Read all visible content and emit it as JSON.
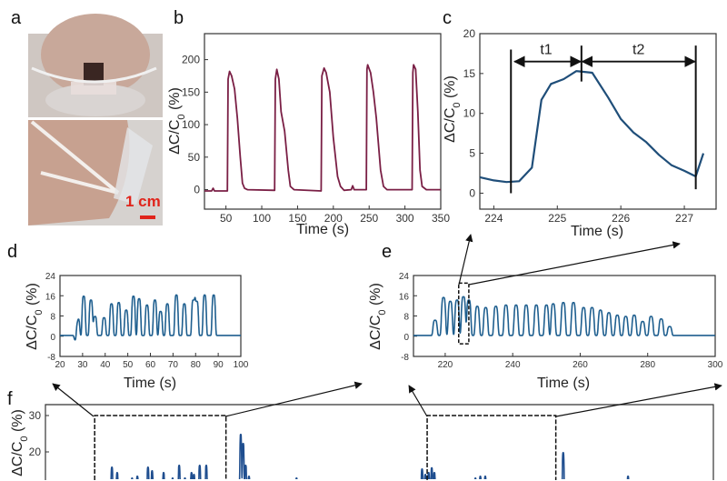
{
  "panel_a": {
    "label": "a",
    "scale_bar_label": "1 cm",
    "scale_bar_color": "#e0241b"
  },
  "chart_data": [
    {
      "id": "b",
      "panel_label": "b",
      "type": "line",
      "color": "#7a1f45",
      "xlabel": "Time (s)",
      "ylabel": [
        "ΔC/C",
        "0",
        " (%)"
      ],
      "xlim": [
        20,
        350
      ],
      "ylim": [
        -30,
        240
      ],
      "xticks": [
        50,
        100,
        150,
        200,
        250,
        300,
        350
      ],
      "yticks": [
        0,
        50,
        100,
        150,
        200
      ],
      "points": [
        [
          20,
          -2
        ],
        [
          30,
          -2
        ],
        [
          32,
          2
        ],
        [
          34,
          -2
        ],
        [
          52,
          -2
        ],
        [
          53,
          170
        ],
        [
          55,
          182
        ],
        [
          58,
          175
        ],
        [
          62,
          155
        ],
        [
          66,
          110
        ],
        [
          70,
          50
        ],
        [
          73,
          10
        ],
        [
          76,
          2
        ],
        [
          80,
          0
        ],
        [
          118,
          -1
        ],
        [
          119,
          170
        ],
        [
          121,
          185
        ],
        [
          124,
          170
        ],
        [
          127,
          120
        ],
        [
          132,
          90
        ],
        [
          137,
          30
        ],
        [
          140,
          5
        ],
        [
          145,
          0
        ],
        [
          183,
          -2
        ],
        [
          184,
          175
        ],
        [
          187,
          187
        ],
        [
          190,
          180
        ],
        [
          195,
          150
        ],
        [
          200,
          80
        ],
        [
          206,
          20
        ],
        [
          210,
          5
        ],
        [
          215,
          -1
        ],
        [
          225,
          0
        ],
        [
          227,
          6
        ],
        [
          229,
          0
        ],
        [
          246,
          0
        ],
        [
          247,
          185
        ],
        [
          248,
          192
        ],
        [
          252,
          180
        ],
        [
          256,
          150
        ],
        [
          260,
          110
        ],
        [
          266,
          30
        ],
        [
          270,
          5
        ],
        [
          275,
          0
        ],
        [
          310,
          0
        ],
        [
          311,
          180
        ],
        [
          312,
          192
        ],
        [
          315,
          185
        ],
        [
          318,
          120
        ],
        [
          321,
          30
        ],
        [
          324,
          5
        ],
        [
          330,
          0
        ],
        [
          350,
          0
        ]
      ]
    },
    {
      "id": "c",
      "panel_label": "c",
      "type": "line",
      "color": "#1f4e79",
      "xlabel": "Time (s)",
      "ylabel": [
        "ΔC/C",
        "0",
        " (%)"
      ],
      "xlim": [
        223.78,
        227.5
      ],
      "ylim": [
        -2,
        20
      ],
      "xticks": [
        224,
        225,
        226,
        227
      ],
      "yticks": [
        0,
        5,
        10,
        15,
        20
      ],
      "points": [
        [
          223.78,
          2
        ],
        [
          224,
          1.6
        ],
        [
          224.2,
          1.4
        ],
        [
          224.4,
          1.5
        ],
        [
          224.6,
          3.2
        ],
        [
          224.75,
          11.7
        ],
        [
          224.9,
          13.7
        ],
        [
          225.1,
          14.3
        ],
        [
          225.3,
          15.3
        ],
        [
          225.55,
          15.1
        ],
        [
          225.8,
          12
        ],
        [
          226,
          9.3
        ],
        [
          226.2,
          7.6
        ],
        [
          226.4,
          6.4
        ],
        [
          226.6,
          4.8
        ],
        [
          226.8,
          3.5
        ],
        [
          227,
          2.8
        ],
        [
          227.18,
          2.1
        ],
        [
          227.3,
          5
        ]
      ],
      "annotations": {
        "markers": [
          224.27,
          225.38,
          227.18
        ],
        "labels": [
          "t1",
          "t2"
        ],
        "arrow_level": 16.5
      }
    },
    {
      "id": "d",
      "panel_label": "d",
      "type": "line",
      "color": "#1f5f8f",
      "xlabel": "Time (s)",
      "ylabel": [
        "ΔC/C",
        "0",
        " (%)"
      ],
      "xlim": [
        20,
        100
      ],
      "ylim": [
        -8,
        24
      ],
      "xticks": [
        20,
        30,
        40,
        50,
        60,
        70,
        80,
        90,
        100
      ],
      "yticks": [
        -8,
        0,
        8,
        16,
        24
      ],
      "baseline": 0.3,
      "peaks": [
        [
          27,
          -1.8
        ],
        [
          28,
          6.5
        ],
        [
          30.5,
          15.5
        ],
        [
          33.7,
          14
        ],
        [
          35.5,
          7.5
        ],
        [
          39.5,
          7
        ],
        [
          42.8,
          12.5
        ],
        [
          46,
          13
        ],
        [
          49.3,
          10
        ],
        [
          52.5,
          15.5
        ],
        [
          55,
          14.5
        ],
        [
          58.5,
          12
        ],
        [
          62,
          14
        ],
        [
          64.5,
          9.5
        ],
        [
          67.5,
          12.5
        ],
        [
          71.5,
          16
        ],
        [
          75,
          12.5
        ],
        [
          79,
          14
        ],
        [
          80.5,
          13.5
        ],
        [
          84,
          16
        ],
        [
          88,
          16
        ]
      ]
    },
    {
      "id": "e",
      "panel_label": "e",
      "type": "line",
      "color": "#1f5f8f",
      "xlabel": "Time (s)",
      "ylabel": [
        "ΔC/C",
        "0",
        " (%)"
      ],
      "xlim": [
        210.6,
        300
      ],
      "ylim": [
        -8,
        24
      ],
      "xticks": [
        220,
        240,
        260,
        280,
        300
      ],
      "yticks": [
        -8,
        0,
        8,
        16,
        24
      ],
      "baseline": 0.3,
      "zoom_window": {
        "x": [
          224,
          227
        ],
        "y": [
          -3,
          21
        ]
      },
      "peaks": [
        [
          217,
          6
        ],
        [
          219.5,
          15
        ],
        [
          221.5,
          13.5
        ],
        [
          223.5,
          14
        ],
        [
          225.4,
          15.3
        ],
        [
          227,
          14
        ],
        [
          229.5,
          11.5
        ],
        [
          232,
          11
        ],
        [
          235,
          11.5
        ],
        [
          238,
          12
        ],
        [
          241,
          12
        ],
        [
          244,
          12
        ],
        [
          247,
          12
        ],
        [
          250,
          12
        ],
        [
          252,
          12.5
        ],
        [
          255,
          13
        ],
        [
          258,
          13
        ],
        [
          261,
          11
        ],
        [
          263.5,
          11
        ],
        [
          266,
          10
        ],
        [
          268.5,
          9
        ],
        [
          271,
          8
        ],
        [
          273.5,
          7.5
        ],
        [
          276,
          8
        ],
        [
          278.5,
          5.5
        ],
        [
          281,
          7.5
        ],
        [
          284,
          6.5
        ],
        [
          286.5,
          3.5
        ]
      ]
    },
    {
      "id": "f",
      "panel_label": "f",
      "type": "line",
      "color": "#1f4e8f",
      "ylabel": [
        "ΔC/C",
        "0",
        " (%)"
      ],
      "xlim": [
        -10,
        397
      ],
      "ylim": [
        8,
        33
      ],
      "yticks": [
        20,
        30
      ],
      "baseline": 0.3,
      "zoom_windows": [
        {
          "x": [
            20,
            100
          ],
          "y_top": 30
        },
        {
          "x": [
            222.6,
            301
          ],
          "y_top": 30
        }
      ],
      "extra_peaks": [
        [
          109,
          24.5
        ],
        [
          110.5,
          22
        ],
        [
          112,
          16
        ],
        [
          114,
          13
        ],
        [
          141,
          12
        ],
        [
          143,
          12.5
        ],
        [
          305.5,
          19.5
        ],
        [
          330,
          12
        ],
        [
          345,
          13
        ]
      ]
    }
  ]
}
